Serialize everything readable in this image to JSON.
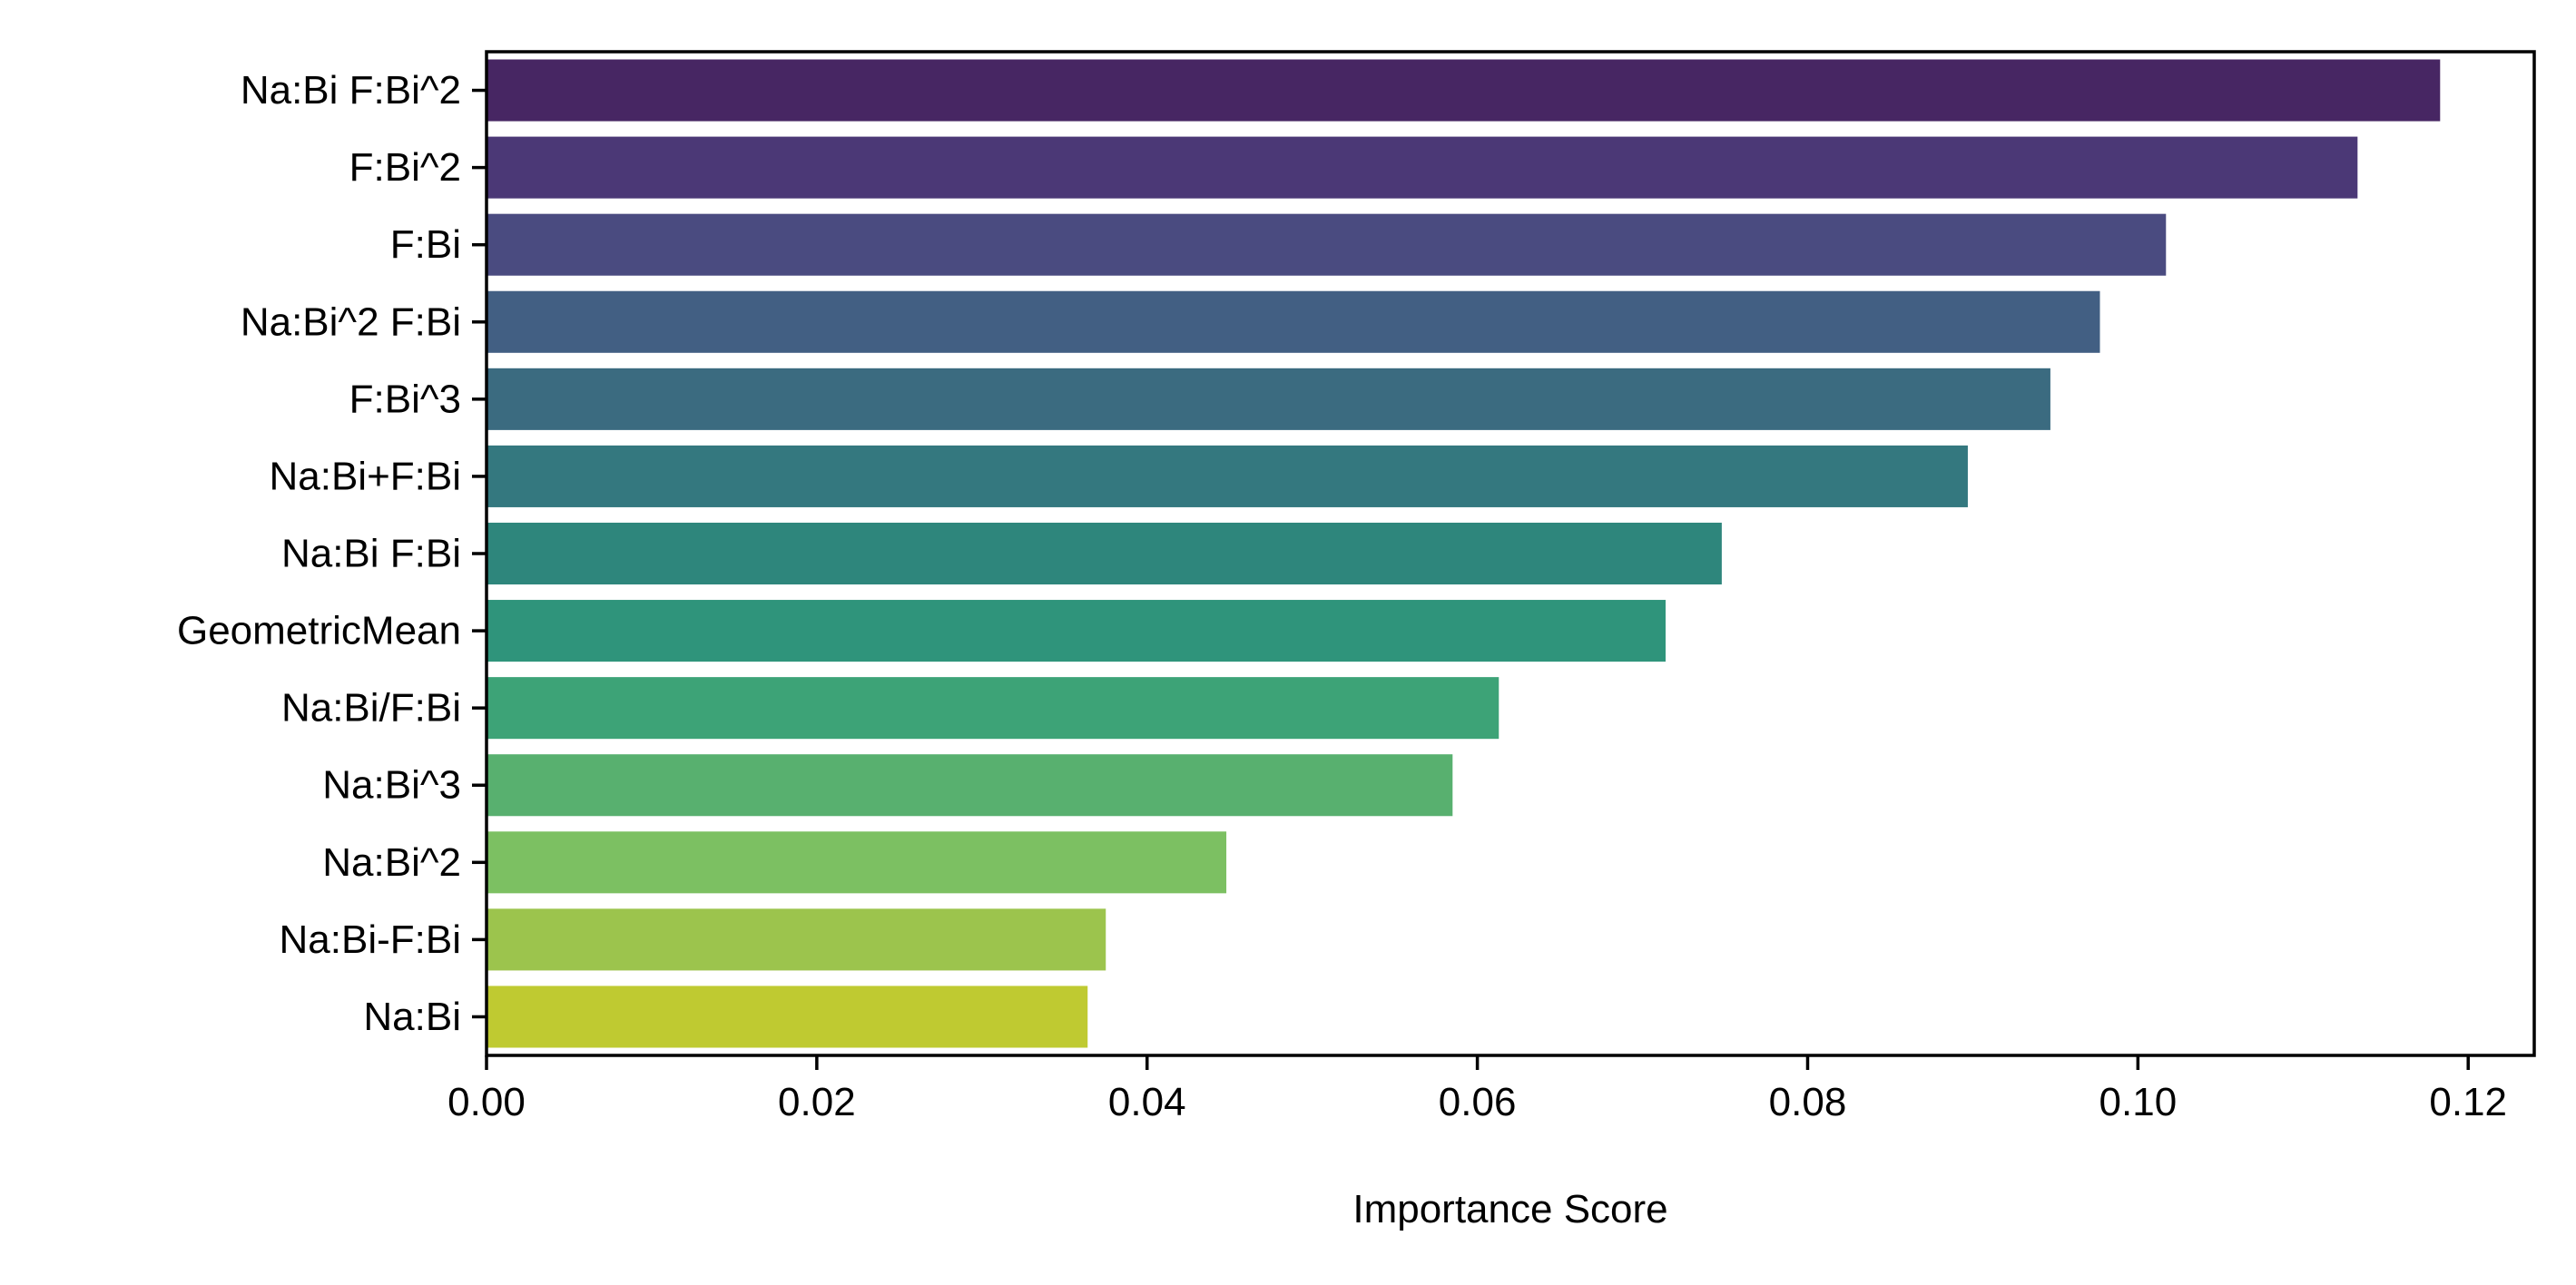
{
  "chart_data": {
    "type": "bar",
    "orientation": "horizontal",
    "title": "",
    "xlabel": "Importance Score",
    "ylabel": "",
    "xlim": [
      0,
      0.124
    ],
    "xticks": [
      0.0,
      0.02,
      0.04,
      0.06,
      0.08,
      0.1,
      0.12
    ],
    "xtick_labels": [
      "0.00",
      "0.02",
      "0.04",
      "0.06",
      "0.08",
      "0.10",
      "0.12"
    ],
    "grid": false,
    "legend": "none",
    "categories": [
      "Na:Bi F:Bi^2",
      "F:Bi^2",
      "F:Bi",
      "Na:Bi^2 F:Bi",
      "F:Bi^3",
      "Na:Bi+F:Bi",
      "Na:Bi F:Bi",
      "GeometricMean",
      "Na:Bi/F:Bi",
      "Na:Bi^3",
      "Na:Bi^2",
      "Na:Bi-F:Bi",
      "Na:Bi"
    ],
    "values": [
      0.1183,
      0.1133,
      0.1017,
      0.0977,
      0.0947,
      0.0897,
      0.0748,
      0.0714,
      0.0613,
      0.0585,
      0.0448,
      0.0375,
      0.0364
    ],
    "colors": [
      "#472663",
      "#4b3876",
      "#4a4b80",
      "#425f83",
      "#3b6b80",
      "#34787f",
      "#2e867c",
      "#2f947b",
      "#3da377",
      "#58b06f",
      "#7cc062",
      "#9cc44d",
      "#bfca31"
    ]
  }
}
